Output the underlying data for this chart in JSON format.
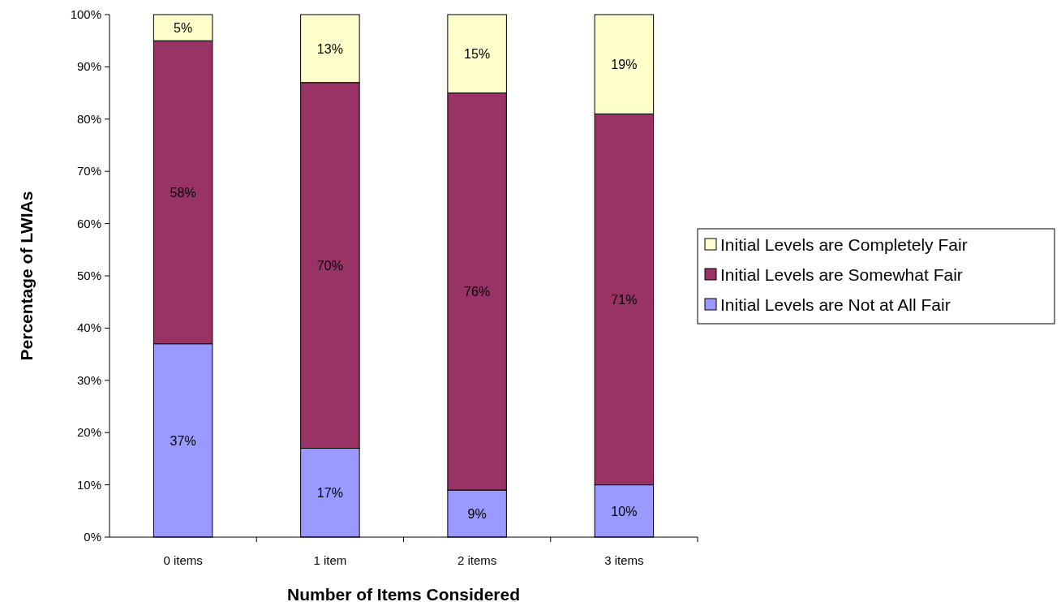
{
  "chart_data": {
    "type": "bar",
    "stacked": true,
    "xlabel": "Number of Items Considered",
    "ylabel": "Percentage of LWIAs",
    "categories": [
      "0 items",
      "1 item",
      "2 items",
      "3 items"
    ],
    "series": [
      {
        "name": "Initial Levels are Not at All Fair",
        "color": "#9999ff",
        "values": [
          37,
          17,
          9,
          10
        ],
        "value_labels": [
          "37%",
          "17%",
          "9%",
          "10%"
        ]
      },
      {
        "name": "Initial Levels are Somewhat Fair",
        "color": "#993366",
        "values": [
          58,
          70,
          76,
          71
        ],
        "value_labels": [
          "58%",
          "70%",
          "76%",
          "71%"
        ]
      },
      {
        "name": "Initial Levels are Completely Fair",
        "color": "#ffffcc",
        "values": [
          5,
          13,
          15,
          19
        ],
        "value_labels": [
          "5%",
          "13%",
          "15%",
          "19%"
        ]
      }
    ],
    "ylim": [
      0,
      100
    ],
    "yticks": [
      {
        "value": 0,
        "label": "0%"
      },
      {
        "value": 10,
        "label": "10%"
      },
      {
        "value": 20,
        "label": "20%"
      },
      {
        "value": 30,
        "label": "30%"
      },
      {
        "value": 40,
        "label": "40%"
      },
      {
        "value": 50,
        "label": "50%"
      },
      {
        "value": 60,
        "label": "60%"
      },
      {
        "value": 70,
        "label": "70%"
      },
      {
        "value": 80,
        "label": "80%"
      },
      {
        "value": 90,
        "label": "90%"
      },
      {
        "value": 100,
        "label": "100%"
      }
    ],
    "legend": "right",
    "grid": false
  }
}
